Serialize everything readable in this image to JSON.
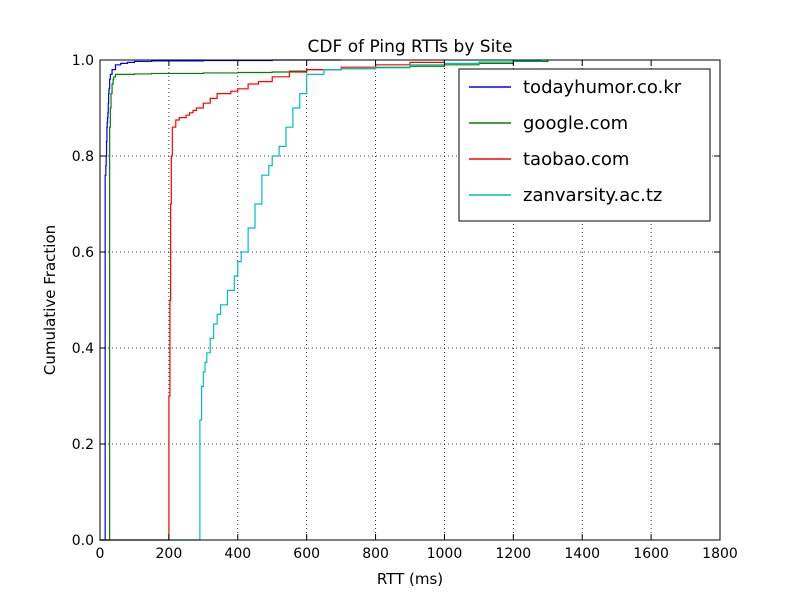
{
  "chart_data": {
    "type": "line",
    "title": "CDF of Ping RTTs by Site",
    "xlabel": "RTT (ms)",
    "ylabel": "Cumulative Fraction",
    "xlim": [
      0,
      1800
    ],
    "ylim": [
      0,
      1.0
    ],
    "xticks": [
      0,
      200,
      400,
      600,
      800,
      1000,
      1200,
      1400,
      1600,
      1800
    ],
    "yticks": [
      0.0,
      0.2,
      0.4,
      0.6,
      0.8,
      1.0
    ],
    "xtick_labels": [
      "0",
      "200",
      "400",
      "600",
      "800",
      "1000",
      "1200",
      "1400",
      "1600",
      "1800"
    ],
    "ytick_labels": [
      "0.0",
      "0.2",
      "0.4",
      "0.6",
      "0.8",
      "1.0"
    ],
    "grid": true,
    "legend_position": "top-right",
    "series": [
      {
        "name": "todayhumor.co.kr",
        "color": "#0000ff",
        "x": [
          15,
          15,
          17,
          18,
          19,
          20,
          21,
          22,
          23,
          24,
          25,
          26,
          28,
          30,
          35,
          45,
          60,
          80,
          100,
          150,
          300,
          500,
          700
        ],
        "y": [
          0.0,
          0.76,
          0.78,
          0.8,
          0.83,
          0.86,
          0.87,
          0.88,
          0.89,
          0.91,
          0.93,
          0.94,
          0.96,
          0.97,
          0.98,
          0.99,
          0.993,
          0.995,
          0.997,
          0.998,
          0.999,
          1.0,
          1.0
        ]
      },
      {
        "name": "google.com",
        "color": "#008000",
        "x": [
          28,
          28,
          30,
          32,
          35,
          38,
          40,
          45,
          100,
          150,
          200,
          300,
          400,
          500,
          550,
          600,
          700,
          800,
          900,
          1000,
          1100,
          1200,
          1300
        ],
        "y": [
          0.0,
          0.86,
          0.9,
          0.93,
          0.95,
          0.96,
          0.965,
          0.97,
          0.971,
          0.972,
          0.972,
          0.973,
          0.974,
          0.975,
          0.977,
          0.98,
          0.982,
          0.984,
          0.987,
          0.99,
          0.993,
          0.997,
          1.0
        ]
      },
      {
        "name": "taobao.com",
        "color": "#ff0000",
        "x": [
          200,
          200,
          203,
          205,
          207,
          210,
          220,
          230,
          240,
          250,
          260,
          270,
          280,
          300,
          320,
          340,
          360,
          380,
          400,
          430,
          460,
          500,
          550,
          600,
          700,
          800,
          900,
          1000
        ],
        "y": [
          0.0,
          0.3,
          0.5,
          0.7,
          0.8,
          0.86,
          0.875,
          0.88,
          0.88,
          0.885,
          0.89,
          0.895,
          0.9,
          0.91,
          0.92,
          0.93,
          0.93,
          0.935,
          0.94,
          0.95,
          0.955,
          0.965,
          0.975,
          0.98,
          0.985,
          0.99,
          0.995,
          1.0
        ]
      },
      {
        "name": "zanvarsity.ac.tz",
        "color": "#00bfbf",
        "x": [
          290,
          290,
          295,
          300,
          305,
          310,
          320,
          330,
          340,
          350,
          370,
          390,
          400,
          410,
          430,
          450,
          470,
          490,
          500,
          520,
          540,
          560,
          580,
          600,
          650,
          700,
          800,
          900,
          1000,
          1100,
          1200,
          1280
        ],
        "y": [
          0.0,
          0.25,
          0.32,
          0.35,
          0.37,
          0.39,
          0.42,
          0.45,
          0.47,
          0.49,
          0.52,
          0.55,
          0.58,
          0.6,
          0.65,
          0.7,
          0.76,
          0.78,
          0.8,
          0.82,
          0.86,
          0.9,
          0.93,
          0.97,
          0.98,
          0.982,
          0.985,
          0.99,
          0.993,
          0.996,
          0.998,
          1.0
        ]
      }
    ]
  }
}
